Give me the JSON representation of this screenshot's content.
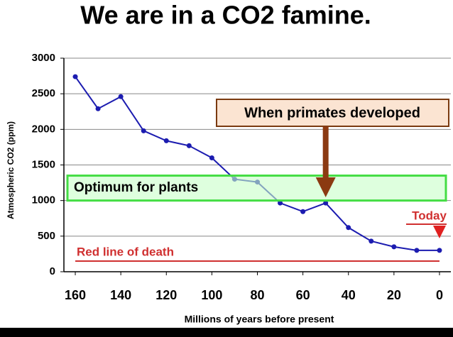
{
  "chart_data": {
    "type": "line",
    "title": "We are in a CO2 famine.",
    "x_label": "Millions of years before present",
    "y_label": "Atmospheric CO2 (ppm)",
    "x": [
      160,
      150,
      140,
      130,
      120,
      110,
      100,
      90,
      80,
      70,
      60,
      50,
      40,
      30,
      20,
      10,
      0
    ],
    "series": [
      {
        "color": "#1c1cb0",
        "values": [
          2740,
          2290,
          2460,
          1980,
          1840,
          1770,
          1600,
          1300,
          1260,
          965,
          845,
          965,
          620,
          430,
          350,
          300,
          300
        ]
      }
    ],
    "xlim": [
      165,
      -5
    ],
    "xticks": [
      160,
      140,
      120,
      100,
      80,
      60,
      40,
      20,
      0
    ],
    "ylim": [
      0,
      3000
    ],
    "yticks": [
      0,
      500,
      1000,
      1500,
      2000,
      2500,
      3000
    ],
    "grid": true,
    "optimum_band": {
      "label": "Optimum for plants",
      "range": [
        1000,
        1350
      ]
    },
    "death_line": {
      "label": "Red line of death",
      "value": 150
    },
    "today": {
      "label": "Today",
      "x": 0
    },
    "primates": {
      "label": "When primates developed",
      "x": 50
    }
  }
}
